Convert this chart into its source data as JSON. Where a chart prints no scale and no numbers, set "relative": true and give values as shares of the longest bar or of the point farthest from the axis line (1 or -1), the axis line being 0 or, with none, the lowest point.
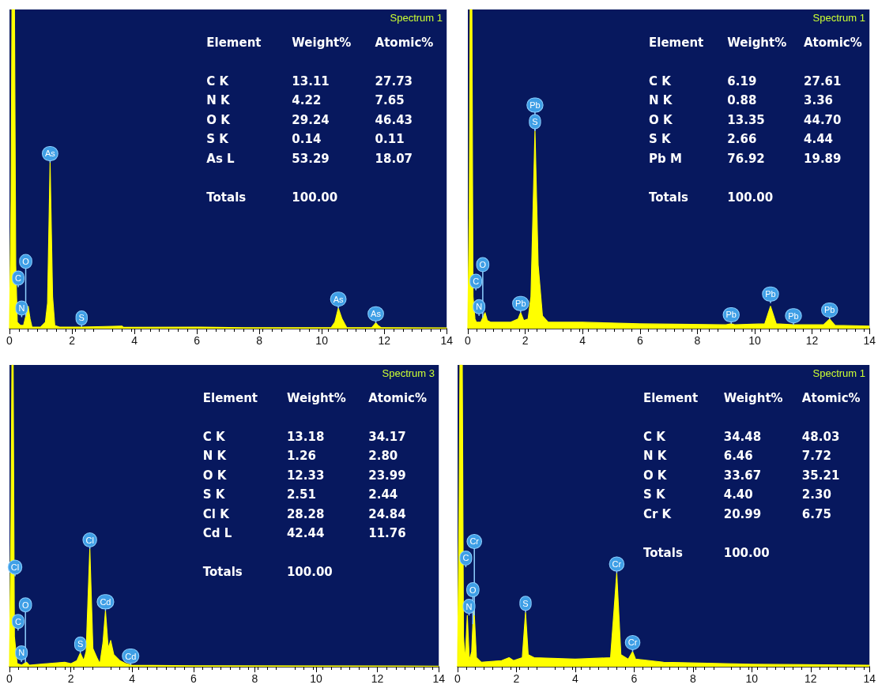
{
  "chart_data": [
    {
      "type": "area",
      "title": "Spectrum 1",
      "color": "#ffff00",
      "relative": true,
      "xlim": [
        0,
        14
      ],
      "xticks": [
        0,
        2,
        4,
        6,
        8,
        10,
        12,
        14
      ],
      "tick_labels": "x",
      "grid": false,
      "x": [
        0,
        0.05,
        0.08,
        0.16,
        0.2,
        0.25,
        0.3,
        0.35,
        0.45,
        0.55,
        0.6,
        0.66,
        0.72,
        1.0,
        1.15,
        1.22,
        1.3,
        1.38,
        1.45,
        1.6,
        2.3,
        3.6,
        3.65,
        6,
        7.5,
        10.3,
        10.42,
        10.53,
        10.65,
        10.8,
        11.6,
        11.68,
        11.73,
        11.8,
        11.9,
        14
      ],
      "values": [
        0,
        0.4,
        1,
        1,
        0.2,
        0.02,
        0.015,
        0.01,
        0.01,
        0.05,
        0.07,
        0.03,
        0.005,
        0.005,
        0.02,
        0.08,
        0.52,
        0.1,
        0.01,
        0.005,
        0.005,
        0.008,
        0.004,
        0.005,
        0.003,
        0.003,
        0.02,
        0.064,
        0.03,
        0.003,
        0.003,
        0.012,
        0.018,
        0.01,
        0.003,
        0.002
      ],
      "annotations": [
        "Element\tWeight%\tAtomic%",
        "C K\t13.11\t27.73",
        "N K\t4.22\t7.65",
        "O K\t29.24\t46.43",
        "S K\t0.14\t0.11",
        "As L\t53.29\t18.07",
        "Totals\t100.00",
        {
          "text": "C",
          "x": 0.28,
          "y": 0.13
        },
        {
          "text": "N",
          "x": 0.39,
          "y": 0.036
        },
        {
          "text": "O",
          "x": 0.52,
          "y": 0.038
        },
        {
          "text": "As",
          "x": 1.3,
          "y": 0.52
        },
        {
          "text": "S",
          "x": 2.31,
          "y": 0.005
        },
        {
          "text": "As",
          "x": 10.53,
          "y": 0.064
        },
        {
          "text": "As",
          "x": 11.73,
          "y": 0.018
        }
      ]
    },
    {
      "type": "area",
      "title": "Spectrum 1",
      "color": "#ffff00",
      "relative": true,
      "xlim": [
        0,
        14
      ],
      "xticks": [
        0,
        2,
        4,
        6,
        8,
        10,
        12,
        14
      ],
      "tick_labels": "x",
      "grid": false,
      "x": [
        0,
        0.05,
        0.08,
        0.14,
        0.18,
        0.25,
        0.3,
        0.45,
        0.55,
        0.6,
        0.68,
        0.8,
        1.5,
        1.75,
        1.84,
        1.95,
        2.1,
        2.2,
        2.34,
        2.45,
        2.6,
        2.8,
        4,
        6,
        9,
        9.18,
        9.3,
        10.35,
        10.55,
        10.75,
        11.35,
        12.4,
        12.61,
        12.8,
        14
      ],
      "values": [
        0,
        0.4,
        1,
        1,
        0.1,
        0.03,
        0.02,
        0.02,
        0.04,
        0.05,
        0.025,
        0.02,
        0.02,
        0.03,
        0.05,
        0.025,
        0.03,
        0.1,
        0.62,
        0.2,
        0.04,
        0.02,
        0.02,
        0.015,
        0.012,
        0.015,
        0.012,
        0.015,
        0.07,
        0.015,
        0.012,
        0.012,
        0.03,
        0.01,
        0.008
      ],
      "annotations": [
        "Element\tWeight%\tAtomic%",
        "C K\t6.19\t27.61",
        "N K\t0.88\t3.36",
        "O K\t13.35\t44.70",
        "S K\t2.66\t4.44",
        "Pb M\t76.92\t19.89",
        "Totals\t100.00",
        {
          "text": "C",
          "x": 0.28,
          "y": 0.12
        },
        {
          "text": "N",
          "x": 0.39,
          "y": 0.04
        },
        {
          "text": "O",
          "x": 0.52,
          "y": 0.034
        },
        {
          "text": "Pb",
          "x": 1.84,
          "y": 0.05
        },
        {
          "text": "S",
          "x": 2.34,
          "y": 0.62
        },
        {
          "text": "Pb",
          "x": 2.34,
          "y": 0.62
        },
        {
          "text": "Pb",
          "x": 9.18,
          "y": 0.015
        },
        {
          "text": "Pb",
          "x": 10.55,
          "y": 0.08
        },
        {
          "text": "Pb",
          "x": 11.35,
          "y": 0.012
        },
        {
          "text": "Pb",
          "x": 12.61,
          "y": 0.03
        }
      ]
    },
    {
      "type": "area",
      "title": "Spectrum 3",
      "color": "#ffff00",
      "relative": true,
      "xlim": [
        0,
        14
      ],
      "xticks": [
        0,
        2,
        4,
        6,
        8,
        10,
        12,
        14
      ],
      "tick_labels": "x",
      "grid": false,
      "x": [
        0,
        0.05,
        0.08,
        0.12,
        0.16,
        0.25,
        0.4,
        0.55,
        0.65,
        1.0,
        1.8,
        2.0,
        2.2,
        2.31,
        2.42,
        2.5,
        2.62,
        2.72,
        2.85,
        2.95,
        3.05,
        3.13,
        3.22,
        3.3,
        3.4,
        3.6,
        3.8,
        4,
        6,
        14
      ],
      "values": [
        0,
        0.5,
        1,
        1,
        0.1,
        0.01,
        0.005,
        0.015,
        0.005,
        0.008,
        0.015,
        0.01,
        0.02,
        0.045,
        0.02,
        0.05,
        0.39,
        0.06,
        0.03,
        0.01,
        0.08,
        0.185,
        0.06,
        0.087,
        0.04,
        0.02,
        0.01,
        0.005,
        0.003,
        0.002
      ],
      "annotations": [
        "Element\tWeight%\tAtomic%",
        "C K\t13.18\t34.17",
        "N K\t1.26\t2.80",
        "O K\t12.33\t23.99",
        "S K\t2.51\t2.44",
        "Cl K\t28.28\t24.84",
        "Cd L\t42.44\t11.76",
        "Totals\t100.00",
        {
          "text": "Cl",
          "x": 0.18,
          "y": 0.3
        },
        {
          "text": "C",
          "x": 0.28,
          "y": 0.12
        },
        {
          "text": "N",
          "x": 0.39,
          "y": 0.016
        },
        {
          "text": "O",
          "x": 0.52,
          "y": 0.013
        },
        {
          "text": "S",
          "x": 2.31,
          "y": 0.045
        },
        {
          "text": "Cl",
          "x": 2.62,
          "y": 0.39
        },
        {
          "text": "Cd",
          "x": 3.13,
          "y": 0.185
        },
        {
          "text": "Cd",
          "x": 3.95,
          "y": 0.005
        }
      ]
    },
    {
      "type": "area",
      "title": "Spectrum 1",
      "color": "#ffff00",
      "relative": true,
      "xlim": [
        0,
        14
      ],
      "xticks": [
        0,
        2,
        4,
        6,
        8,
        10,
        12,
        14
      ],
      "tick_labels": "x",
      "grid": false,
      "x": [
        0,
        0.05,
        0.08,
        0.16,
        0.2,
        0.26,
        0.33,
        0.4,
        0.48,
        0.55,
        0.64,
        0.8,
        1.5,
        1.75,
        1.9,
        2.2,
        2.31,
        2.4,
        2.6,
        4,
        5.2,
        5.41,
        5.55,
        5.8,
        5.95,
        6.05,
        7,
        10,
        14
      ],
      "values": [
        0,
        0.5,
        1,
        1,
        0.1,
        0.02,
        0.17,
        0.02,
        0.05,
        0.21,
        0.03,
        0.015,
        0.02,
        0.03,
        0.02,
        0.03,
        0.18,
        0.04,
        0.03,
        0.025,
        0.03,
        0.31,
        0.04,
        0.025,
        0.05,
        0.025,
        0.015,
        0.008,
        0.005
      ],
      "annotations": [
        "Element\tWeight%\tAtomic%",
        "C K\t34.48\t48.03",
        "N K\t6.46\t7.72",
        "O K\t33.67\t35.21",
        "S K\t4.40\t2.30",
        "Cr K\t20.99\t6.75",
        "Totals\t100.00",
        {
          "text": "C",
          "x": 0.28,
          "y": 0.33
        },
        {
          "text": "N",
          "x": 0.39,
          "y": 0.17
        },
        {
          "text": "O",
          "x": 0.52,
          "y": 0.141
        },
        {
          "text": "Cr",
          "x": 0.57,
          "y": 0.17
        },
        {
          "text": "S",
          "x": 2.31,
          "y": 0.18
        },
        {
          "text": "Cr",
          "x": 5.41,
          "y": 0.31
        },
        {
          "text": "Cr",
          "x": 5.95,
          "y": 0.05
        }
      ]
    }
  ]
}
